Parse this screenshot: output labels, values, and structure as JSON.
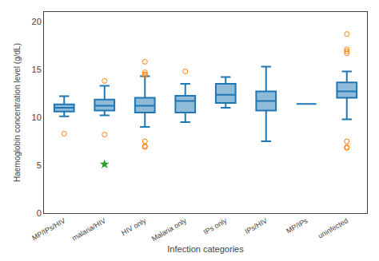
{
  "chart_data": {
    "type": "box",
    "xlabel": "Infection categories",
    "ylabel": "Haemoglobin concentration level (g/dL)",
    "categories": [
      "MP/IPs/HIV",
      "malaria/HIV",
      "HIV only",
      "Malaria only",
      "IPs only",
      "IPs/HIV",
      "MP/IPs",
      "uninfected"
    ],
    "boxes": [
      {
        "q1": 10.6,
        "median": 11.0,
        "q3": 11.35,
        "whisker_low": 10.1,
        "whisker_high": 12.2,
        "outliers_low": [
          8.3
        ],
        "outliers_high": [],
        "stars": []
      },
      {
        "q1": 10.7,
        "median": 11.2,
        "q3": 11.85,
        "whisker_low": 10.2,
        "whisker_high": 13.3,
        "outliers_low": [
          8.2
        ],
        "outliers_high": [
          13.8
        ],
        "stars": [
          5.1
        ]
      },
      {
        "q1": 10.5,
        "median": 11.2,
        "q3": 12.05,
        "whisker_low": 9.0,
        "whisker_high": 14.3,
        "outliers_low": [
          7.5,
          6.9,
          7.0
        ],
        "outliers_high": [
          15.8,
          14.7,
          14.5,
          14.4
        ],
        "stars": []
      },
      {
        "q1": 10.5,
        "median": 11.7,
        "q3": 12.25,
        "whisker_low": 9.5,
        "whisker_high": 13.5,
        "outliers_low": [],
        "outliers_high": [
          14.8
        ],
        "stars": []
      },
      {
        "q1": 11.5,
        "median": 12.35,
        "q3": 13.5,
        "whisker_low": 11.0,
        "whisker_high": 14.2,
        "outliers_low": [],
        "outliers_high": [],
        "stars": []
      },
      {
        "q1": 10.7,
        "median": 11.7,
        "q3": 12.7,
        "whisker_low": 7.5,
        "whisker_high": 15.3,
        "outliers_low": [],
        "outliers_high": [],
        "stars": []
      },
      {
        "q1": 11.4,
        "median": 11.4,
        "q3": 11.4,
        "whisker_low": 11.4,
        "whisker_high": 11.4,
        "outliers_low": [],
        "outliers_high": [],
        "stars": []
      },
      {
        "q1": 12.05,
        "median": 12.7,
        "q3": 13.65,
        "whisker_low": 9.8,
        "whisker_high": 14.8,
        "outliers_low": [
          7.5,
          6.9,
          6.8
        ],
        "outliers_high": [
          18.7,
          17.1,
          16.9,
          16.7
        ],
        "stars": []
      }
    ],
    "ylim": [
      0,
      21
    ],
    "yticks": [
      0,
      5,
      10,
      15,
      20
    ],
    "grid": false
  }
}
